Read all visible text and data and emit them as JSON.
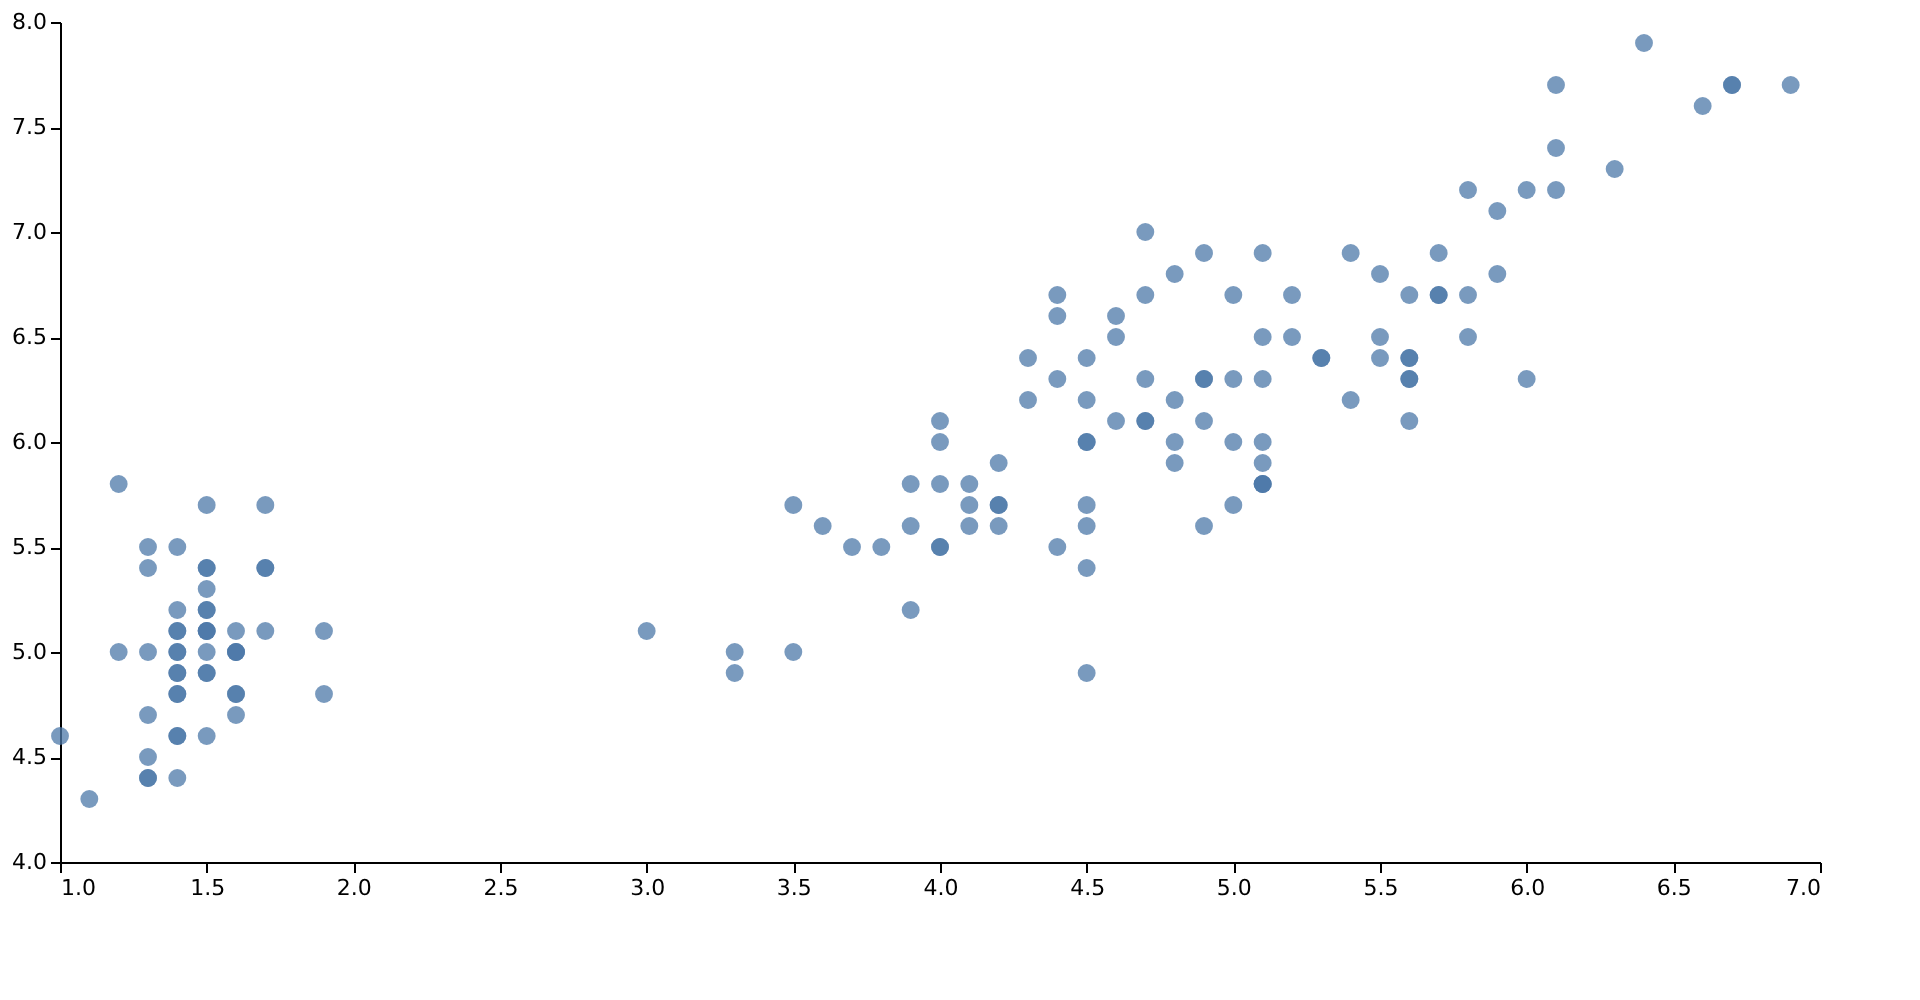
{
  "chart_data": {
    "type": "scatter",
    "series": [
      {
        "color": "#4c78a8",
        "x": [
          1.4,
          1.4,
          1.3,
          1.5,
          1.4,
          1.7,
          1.4,
          1.5,
          1.4,
          1.5,
          1.5,
          1.6,
          1.4,
          1.1,
          1.2,
          1.5,
          1.3,
          1.4,
          1.7,
          1.5,
          1.7,
          1.5,
          1.0,
          1.7,
          1.9,
          1.6,
          1.6,
          1.5,
          1.4,
          1.6,
          1.6,
          1.5,
          1.5,
          1.4,
          1.5,
          1.2,
          1.3,
          1.4,
          1.3,
          1.5,
          1.3,
          1.3,
          1.3,
          1.6,
          1.9,
          1.4,
          1.6,
          1.4,
          1.5,
          1.4,
          4.7,
          4.5,
          4.9,
          4.0,
          4.6,
          4.5,
          4.7,
          3.3,
          4.6,
          3.9,
          3.5,
          4.2,
          4.0,
          4.7,
          3.6,
          4.4,
          4.5,
          4.1,
          4.5,
          3.9,
          4.8,
          4.0,
          4.9,
          4.7,
          4.3,
          4.4,
          4.8,
          5.0,
          4.5,
          3.5,
          3.8,
          3.7,
          3.9,
          5.1,
          4.5,
          4.5,
          4.7,
          4.4,
          4.1,
          4.0,
          4.4,
          4.6,
          4.0,
          3.3,
          4.2,
          4.2,
          4.2,
          4.3,
          3.0,
          4.1,
          6.0,
          5.1,
          5.9,
          5.6,
          5.8,
          6.6,
          4.5,
          6.3,
          5.8,
          6.1,
          5.1,
          5.3,
          5.5,
          5.0,
          5.1,
          5.3,
          5.5,
          6.7,
          6.9,
          5.0,
          5.7,
          4.9,
          6.7,
          4.9,
          5.7,
          6.0,
          4.8,
          4.9,
          5.6,
          5.8,
          6.1,
          6.4,
          5.6,
          5.1,
          5.6,
          6.1,
          5.6,
          5.5,
          4.8,
          5.4,
          5.6,
          5.1,
          5.1,
          5.9,
          5.7,
          5.2,
          5.0,
          5.2,
          5.4,
          5.1
        ],
        "values": [
          5.1,
          4.9,
          4.7,
          4.6,
          5.0,
          5.4,
          4.6,
          5.0,
          4.4,
          4.9,
          5.4,
          4.8,
          4.8,
          4.3,
          5.8,
          5.7,
          5.4,
          5.1,
          5.7,
          5.1,
          5.4,
          5.1,
          4.6,
          5.1,
          4.8,
          5.0,
          5.0,
          5.2,
          5.2,
          4.7,
          4.8,
          5.4,
          5.2,
          5.5,
          4.9,
          5.0,
          5.5,
          4.9,
          4.4,
          5.1,
          5.0,
          4.5,
          4.4,
          5.0,
          5.1,
          4.8,
          5.1,
          4.6,
          5.3,
          5.0,
          7.0,
          6.4,
          6.9,
          5.5,
          6.5,
          5.7,
          6.3,
          4.9,
          6.6,
          5.2,
          5.0,
          5.9,
          6.0,
          6.1,
          5.6,
          6.7,
          5.6,
          5.8,
          6.2,
          5.6,
          5.9,
          6.1,
          6.3,
          6.1,
          6.4,
          6.6,
          6.8,
          6.7,
          6.0,
          5.7,
          5.5,
          5.5,
          5.8,
          6.0,
          5.4,
          6.0,
          6.7,
          6.3,
          5.6,
          5.5,
          5.5,
          6.1,
          5.8,
          5.0,
          5.6,
          5.7,
          5.7,
          6.2,
          5.1,
          5.7,
          6.3,
          5.8,
          7.1,
          6.3,
          6.5,
          7.6,
          4.9,
          7.3,
          6.7,
          7.2,
          6.5,
          6.4,
          6.8,
          5.7,
          5.8,
          6.4,
          6.5,
          7.7,
          7.7,
          6.0,
          6.9,
          5.6,
          7.7,
          6.3,
          6.7,
          7.2,
          6.2,
          6.1,
          6.4,
          7.2,
          7.4,
          7.9,
          6.4,
          6.3,
          6.1,
          7.7,
          6.3,
          6.4,
          6.0,
          6.9,
          6.7,
          6.9,
          5.8,
          6.8,
          6.7,
          6.7,
          6.3,
          6.5,
          6.2,
          5.9
        ]
      }
    ],
    "xlim": [
      1.0,
      7.0
    ],
    "xticks": [
      {
        "value": 1,
        "label": "1.0"
      },
      1.5,
      {
        "value": 2,
        "label": "2.0"
      },
      2.5,
      {
        "value": 3,
        "label": "3.0"
      },
      3.5,
      {
        "value": 4,
        "label": "4.0"
      },
      4.5,
      {
        "value": 5,
        "label": "5.0"
      },
      5.5,
      {
        "value": 6,
        "label": "6.0"
      },
      6.5,
      {
        "value": 7,
        "label": "7.0"
      }
    ],
    "ylim": [
      4.0,
      8.0
    ],
    "yticks": [
      {
        "value": 4,
        "label": "4.0"
      },
      4.5,
      {
        "value": 5,
        "label": "5.0"
      },
      5.5,
      {
        "value": 6,
        "label": "6.0"
      },
      6.5,
      {
        "value": 7,
        "label": "7.0"
      },
      7.5,
      {
        "value": 8,
        "label": "8.0"
      }
    ],
    "marker": "circle",
    "grid": false
  }
}
